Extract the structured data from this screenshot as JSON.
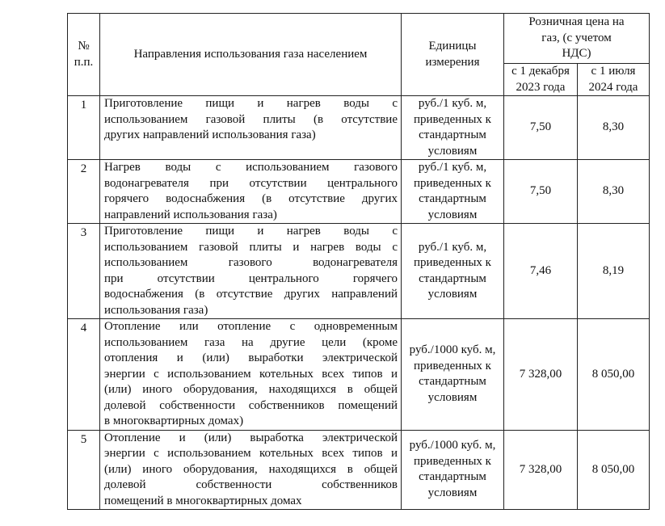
{
  "header": {
    "num": "№ п.п.",
    "direction": "Направления использования газа населением",
    "units": "Единицы измерения",
    "price": "Розничная цена на газ, (с учетом НДС)",
    "period1": "с 1 декабря 2023 года",
    "period2": "с 1 июля 2024 года"
  },
  "rows": [
    {
      "num": "1",
      "lines": [
        "Приготовление пищи и нагрев воды с",
        "использованием газовой плиты (в отсутствие",
        "других направлений использования газа)"
      ],
      "unit": "руб./1 куб. м, приведенных к стандартным условиям",
      "p1": "7,50",
      "p2": "8,30"
    },
    {
      "num": "2",
      "lines": [
        "Нагрев воды с использованием газового",
        "водонагревателя при отсутствии центрального",
        "горячего водоснабжения (в отсутствие других",
        "направлений использования газа)"
      ],
      "unit": "руб./1 куб. м, приведенных к стандартным условиям",
      "p1": "7,50",
      "p2": "8,30"
    },
    {
      "num": "3",
      "lines": [
        "Приготовление пищи и нагрев воды с",
        "использованием газовой плиты и нагрев воды с",
        "использованием газового водонагревателя",
        "при отсутствии центрального горячего",
        "водоснабжения (в отсутствие других направлений",
        "использования газа)"
      ],
      "unit": "руб./1 куб. м, приведенных к стандартным условиям",
      "p1": "7,46",
      "p2": "8,19"
    },
    {
      "num": "4",
      "lines": [
        "Отопление или отопление с одновременным",
        "использованием газа на другие цели (кроме",
        "отопления и (или) выработки электрической",
        "энергии с использованием котельных всех типов и",
        "(или) иного оборудования, находящихся в общей",
        "долевой собственности собственников помещений",
        "в многоквартирных домах)"
      ],
      "unit": "руб./1000 куб. м, приведенных к стандартным условиям",
      "p1": "7 328,00",
      "p2": "8 050,00"
    },
    {
      "num": "5",
      "lines": [
        "Отопление и (или) выработка электрической",
        "энергии с использованием котельных всех типов и",
        "(или) иного оборудования, находящихся в общей",
        "долевой собственности собственников",
        "помещений в многоквартирных домах"
      ],
      "unit": "руб./1000 куб. м, приведенных к стандартным условиям",
      "p1": "7 328,00",
      "p2": "8 050,00"
    }
  ]
}
